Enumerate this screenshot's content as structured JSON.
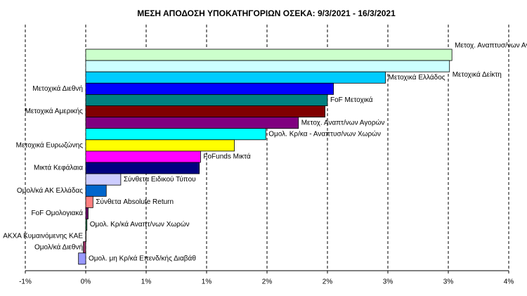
{
  "chart_data": {
    "type": "hbar",
    "title": "ΜΕΣΗ ΑΠΟΔΟΣΗ ΥΠΟΚΑΤΗΓΟΡΙΩΝ ΟΣΕΚΑ: 9/3/2021 - 16/3/2021",
    "categories": [
      "Μετοχ. Αναπτυσ/νων Αγορών",
      "Μετοχικά Δείκτη",
      "Μετοχικά Ελλάδος",
      "Μετοχικά Διεθνή",
      "FoF Μετοχικά",
      "Μετοχικά Αμερικής",
      "Μετοχ. Αναπτ/νων Αγορών",
      "Ομολ. Κρ/κα - Αναπτυσ/νων Χωρών",
      "Μετοχικά Ευρωζώνης",
      "FoFunds Μικτά",
      "Μικτά Κεφάλαια",
      "Σύνθετα Ειδικού Τύπου",
      "Ομολ/κά ΑΚ Ελλάδας",
      "Σύνθετα Absolute Return",
      "FoF Ομολογιακά",
      "Ομολ. Κρ/κά Αναπτ/νων Χωρών",
      "ΑΚΧΑ Κυμαινόμενης ΚΑΕ",
      "Ομολ/κά Διεθνή",
      "Ομολ. μη Κρ/κά Επενδ/κής Διαβάθ"
    ],
    "values": [
      3.03,
      3.01,
      2.48,
      2.05,
      2.0,
      1.98,
      1.76,
      1.49,
      1.23,
      0.95,
      0.94,
      0.29,
      0.17,
      0.06,
      0.02,
      0.01,
      0.0,
      -0.02,
      -0.06
    ],
    "colors": [
      "#ccffcc",
      "#ccffff",
      "#00ccff",
      "#0000ff",
      "#008080",
      "#800000",
      "#800080",
      "#00ffff",
      "#ffff00",
      "#ff00ff",
      "#000080",
      "#ccccff",
      "#0066cc",
      "#ff8080",
      "#660066",
      "#339966",
      "#993366",
      "#993366",
      "#9999ff"
    ],
    "xlim": [
      -0.5,
      3.5
    ],
    "xticks": [
      {
        "value": -0.5,
        "label": "-1%"
      },
      {
        "value": 0,
        "label": "0%"
      },
      {
        "value": 0.5,
        "label": "1%"
      },
      {
        "value": 1,
        "label": "1%"
      },
      {
        "value": 1.5,
        "label": "2%"
      },
      {
        "value": 2,
        "label": "2%"
      },
      {
        "value": 2.5,
        "label": "3%"
      },
      {
        "value": 3,
        "label": "3%"
      },
      {
        "value": 3.5,
        "label": "4%"
      }
    ],
    "grid": true
  }
}
